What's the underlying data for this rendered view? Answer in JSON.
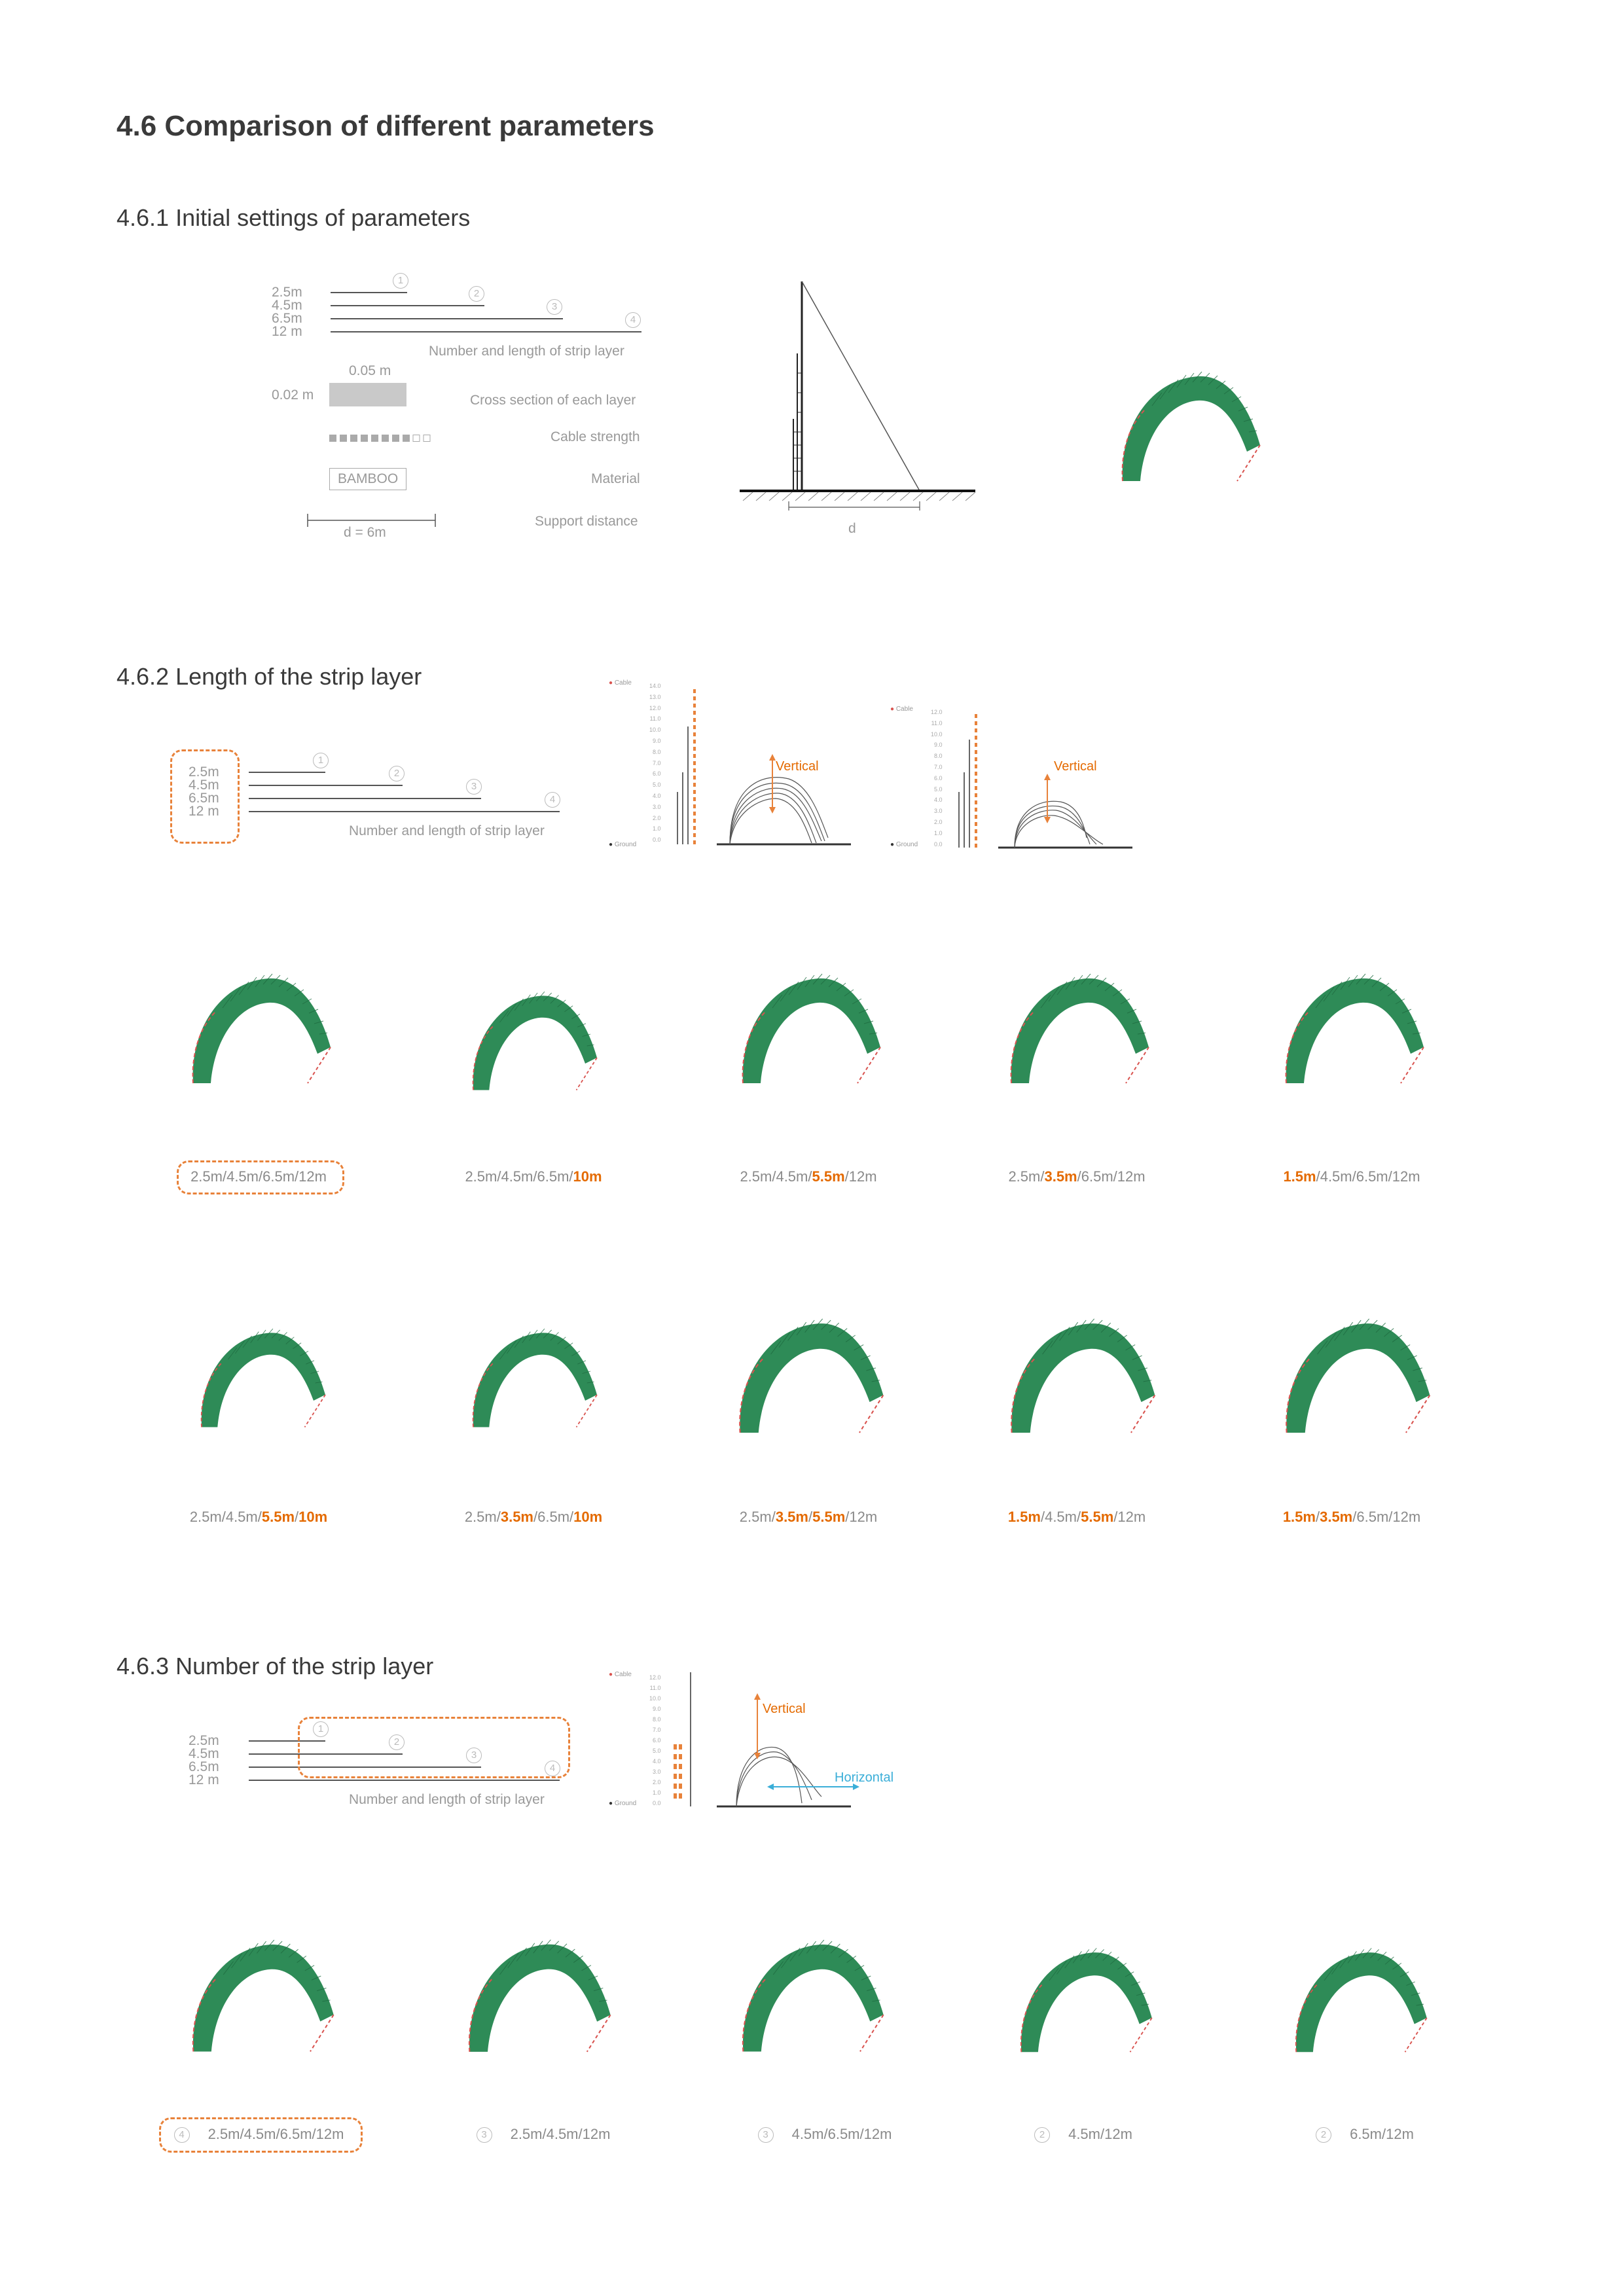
{
  "heading": "4.6 Comparison of different parameters",
  "s1": {
    "title": "4.6.1 Initial settings of parameters",
    "lengths": [
      "2.5m",
      "4.5m",
      "6.5m",
      "12 m"
    ],
    "numbers": [
      "1",
      "2",
      "3",
      "4"
    ],
    "strip_label": "Number and length of strip layer",
    "cross_width": "0.05 m",
    "cross_height": "0.02 m",
    "cross_label": "Cross section of each layer",
    "cable_label": "Cable strength",
    "material_value": "BAMBOO",
    "material_label": "Material",
    "support_value": "d = 6m",
    "support_label": "Support distance",
    "diagram_d": "d"
  },
  "s2": {
    "title": "4.6.2 Length of the strip layer",
    "lengths": [
      "2.5m",
      "4.5m",
      "6.5m",
      "12 m"
    ],
    "numbers": [
      "1",
      "2",
      "3",
      "4"
    ],
    "strip_label": "Number and length of strip layer",
    "vertical_label": "Vertical",
    "chart_cable": "Cable",
    "chart_ground": "Ground",
    "ticks_a": [
      "14.0",
      "13.0",
      "12.0",
      "11.0",
      "10.0",
      "9.0",
      "8.0",
      "7.0",
      "6.0",
      "5.0",
      "4.0",
      "3.0",
      "2.0",
      "1.0",
      "0.0"
    ],
    "ticks_b": [
      "12.0",
      "11.0",
      "10.0",
      "9.0",
      "8.0",
      "7.0",
      "6.0",
      "5.0",
      "4.0",
      "3.0",
      "2.0",
      "1.0",
      "0.0"
    ],
    "captions_row1": [
      [
        {
          "t": "2.5m/4.5m/6.5m/12m",
          "h": false
        }
      ],
      [
        {
          "t": "2.5m/4.5m/6.5m/",
          "h": false
        },
        {
          "t": "10m",
          "h": true
        }
      ],
      [
        {
          "t": "2.5m/4.5m/",
          "h": false
        },
        {
          "t": "5.5m",
          "h": true
        },
        {
          "t": "/12m",
          "h": false
        }
      ],
      [
        {
          "t": "2.5m/",
          "h": false
        },
        {
          "t": "3.5m",
          "h": true
        },
        {
          "t": "/6.5m/12m",
          "h": false
        }
      ],
      [
        {
          "t": "1.5m",
          "h": true
        },
        {
          "t": "/4.5m/6.5m/12m",
          "h": false
        }
      ]
    ],
    "captions_row2": [
      [
        {
          "t": "2.5m/4.5m/",
          "h": false
        },
        {
          "t": "5.5m",
          "h": true
        },
        {
          "t": "/",
          "h": false
        },
        {
          "t": "10m",
          "h": true
        }
      ],
      [
        {
          "t": "2.5m/",
          "h": false
        },
        {
          "t": "3.5m",
          "h": true
        },
        {
          "t": "/6.5m/",
          "h": false
        },
        {
          "t": "10m",
          "h": true
        }
      ],
      [
        {
          "t": "2.5m/",
          "h": false
        },
        {
          "t": "3.5m",
          "h": true
        },
        {
          "t": "/",
          "h": false
        },
        {
          "t": "5.5m",
          "h": true
        },
        {
          "t": "/12m",
          "h": false
        }
      ],
      [
        {
          "t": "1.5m",
          "h": true
        },
        {
          "t": "/4.5m/",
          "h": false
        },
        {
          "t": "5.5m",
          "h": true
        },
        {
          "t": "/12m",
          "h": false
        }
      ],
      [
        {
          "t": "1.5m",
          "h": true
        },
        {
          "t": "/",
          "h": false
        },
        {
          "t": "3.5m",
          "h": true
        },
        {
          "t": "/6.5m/12m",
          "h": false
        }
      ]
    ]
  },
  "s3": {
    "title": "4.6.3 Number of the strip layer",
    "lengths": [
      "2.5m",
      "4.5m",
      "6.5m",
      "12 m"
    ],
    "numbers": [
      "1",
      "2",
      "3",
      "4"
    ],
    "strip_label": "Number and length of strip layer",
    "vertical_label": "Vertical",
    "horizontal_label": "Horizontal",
    "chart_cable": "Cable",
    "chart_ground": "Ground",
    "ticks": [
      "12.0",
      "11.0",
      "10.0",
      "9.0",
      "8.0",
      "7.0",
      "6.0",
      "5.0",
      "4.0",
      "3.0",
      "2.0",
      "1.0",
      "0.0"
    ],
    "captions": [
      {
        "n": "4",
        "t": "2.5m/4.5m/6.5m/12m"
      },
      {
        "n": "3",
        "t": "2.5m/4.5m/12m"
      },
      {
        "n": "3",
        "t": "4.5m/6.5m/12m"
      },
      {
        "n": "2",
        "t": "4.5m/12m"
      },
      {
        "n": "2",
        "t": "6.5m/12m"
      }
    ]
  },
  "colors": {
    "accent": "#e46a00",
    "arch_green": "#2e8b57",
    "horizontal": "#3aaed8"
  }
}
